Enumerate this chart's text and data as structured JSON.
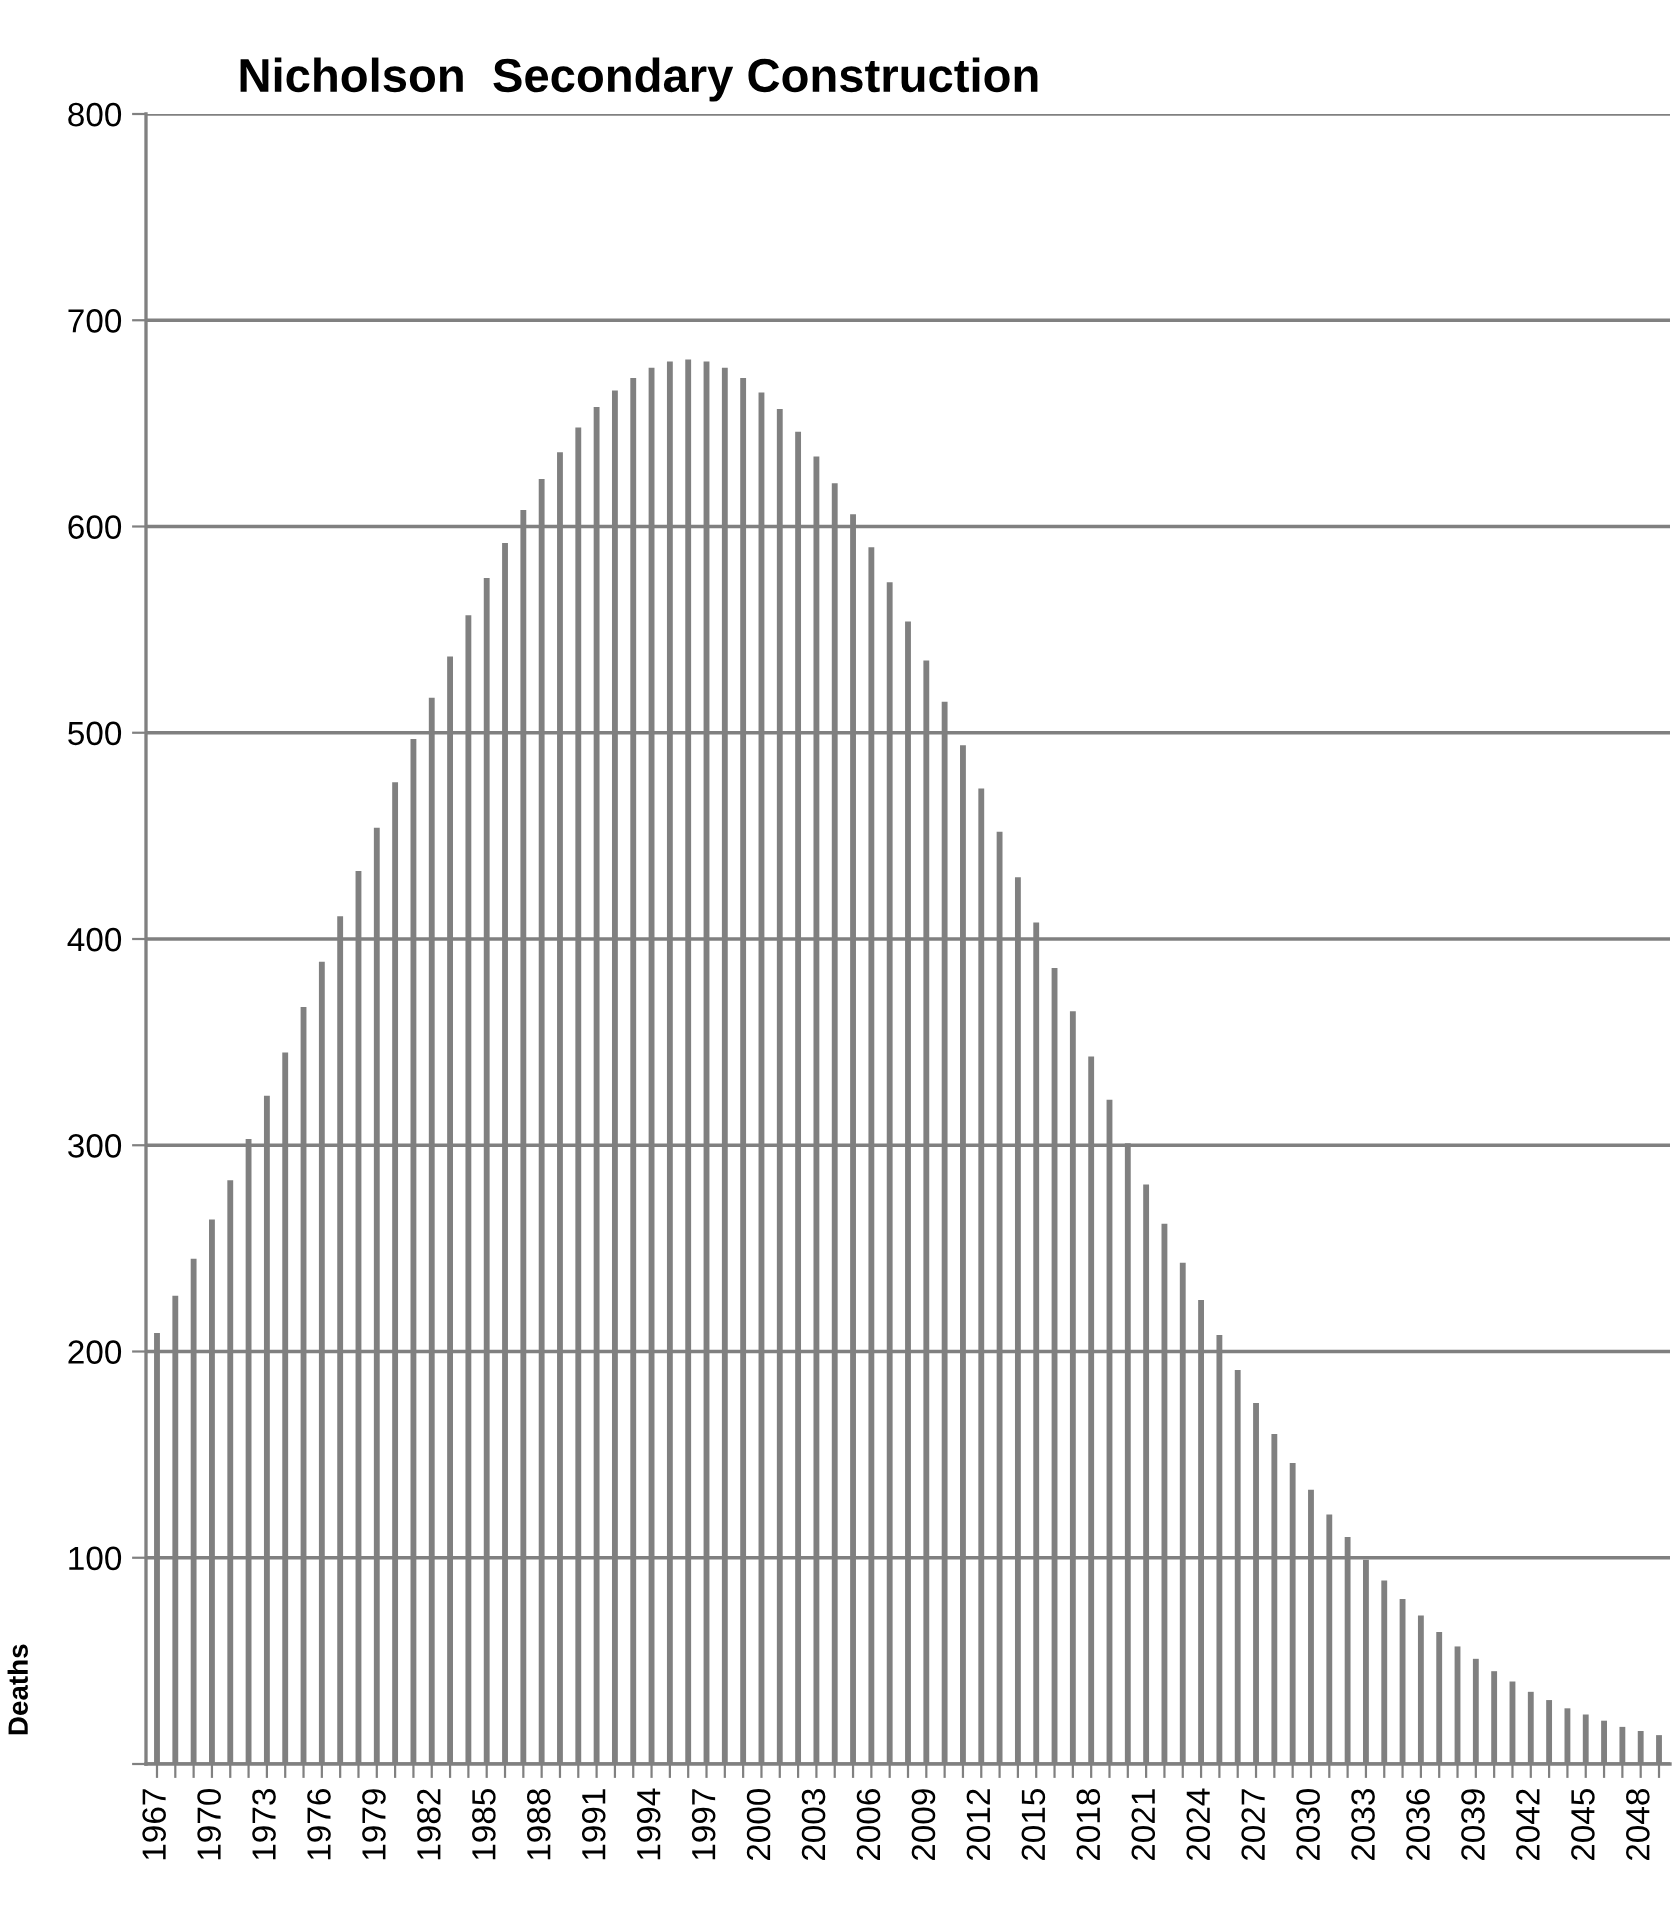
{
  "chart_data": {
    "type": "bar",
    "title": "Nicholson  Secondary Construction",
    "ylabel": "Deaths",
    "categories": [
      "1967",
      null,
      null,
      "1970",
      null,
      null,
      "1973",
      null,
      null,
      "1976",
      null,
      null,
      "1979",
      null,
      null,
      "1982",
      null,
      null,
      "1985",
      null,
      null,
      "1988",
      null,
      null,
      "1991",
      null,
      null,
      "1994",
      null,
      null,
      "1997",
      null,
      null,
      "2000",
      null,
      null,
      "2003",
      null,
      null,
      "2006",
      null,
      null,
      "2009",
      null,
      null,
      "2012",
      null,
      null,
      "2015",
      null,
      null,
      "2018",
      null,
      null,
      "2021",
      null,
      null,
      "2024",
      null,
      null,
      "2027",
      null,
      null,
      "2030",
      null,
      null,
      "2033",
      null,
      null,
      "2036",
      null,
      null,
      "2039",
      null,
      null,
      "2042",
      null,
      null,
      "2045",
      null,
      null,
      "2048",
      null
    ],
    "values": [
      209,
      227,
      245,
      264,
      283,
      303,
      324,
      345,
      367,
      389,
      411,
      433,
      454,
      476,
      497,
      517,
      537,
      557,
      575,
      592,
      608,
      623,
      636,
      648,
      658,
      666,
      672,
      677,
      680,
      681,
      680,
      677,
      672,
      665,
      657,
      646,
      634,
      621,
      606,
      590,
      573,
      554,
      535,
      515,
      494,
      473,
      452,
      430,
      408,
      386,
      365,
      343,
      322,
      301,
      281,
      262,
      243,
      225,
      208,
      191,
      175,
      160,
      146,
      133,
      121,
      110,
      99,
      89,
      80,
      72,
      64,
      57,
      51,
      45,
      40,
      35,
      31,
      27,
      24,
      21,
      18,
      16,
      14
    ],
    "color": "#808080",
    "ylim": [
      0,
      800
    ],
    "yticks": [
      {
        "value": 0,
        "label": null
      },
      100,
      200,
      300,
      400,
      500,
      600,
      700,
      800
    ],
    "grid": "y",
    "legend": false
  }
}
